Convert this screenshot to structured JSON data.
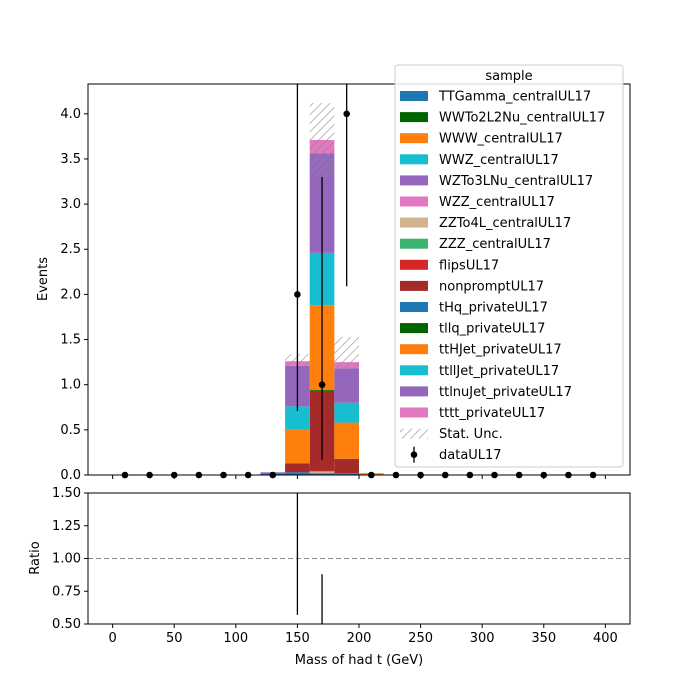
{
  "chart_data": {
    "type": "bar",
    "stacked": true,
    "xlabel": "Mass of had t (GeV)",
    "ylabel_top": "Events",
    "ylabel_bottom": "Ratio",
    "xlim": [
      -20,
      420
    ],
    "ylim_top": [
      0,
      4.33
    ],
    "ylim_bottom": [
      0.5,
      1.5
    ],
    "bin_width": 20,
    "x_ticks": [
      0,
      50,
      100,
      150,
      200,
      250,
      300,
      350,
      400
    ],
    "y_ticks_top": [
      0.0,
      0.5,
      1.0,
      1.5,
      2.0,
      2.5,
      3.0,
      3.5,
      4.0
    ],
    "y_ticks_bottom": [
      0.5,
      0.75,
      1.0,
      1.25,
      1.5
    ],
    "legend": {
      "title": "sample",
      "placement": "top-right"
    },
    "bin_starts": [
      120,
      140,
      160,
      180,
      200
    ],
    "series": [
      {
        "name": "TTGamma_centralUL17",
        "color": "#1f77b4",
        "values": [
          0.02,
          0.03,
          0.02,
          0.02,
          0.0
        ]
      },
      {
        "name": "WWTo2L2Nu_centralUL17",
        "color": "#006400",
        "values": [
          0,
          0,
          0,
          0,
          0
        ]
      },
      {
        "name": "WWW_centralUL17",
        "color": "#ff7f0e",
        "values": [
          0,
          0,
          0,
          0,
          0.02
        ]
      },
      {
        "name": "WWZ_centralUL17",
        "color": "#17becf",
        "values": [
          0,
          0,
          0,
          0,
          0
        ]
      },
      {
        "name": "WZTo3LNu_centralUL17",
        "color": "#9467bd",
        "values": [
          0.01,
          0,
          0,
          0,
          0
        ]
      },
      {
        "name": "WZZ_centralUL17",
        "color": "#e377c2",
        "values": [
          0,
          0,
          0,
          0,
          0
        ]
      },
      {
        "name": "ZZTo4L_centralUL17",
        "color": "#d2b48c",
        "values": [
          0,
          0,
          0.02,
          0,
          0
        ]
      },
      {
        "name": "ZZZ_centralUL17",
        "color": "#3cb371",
        "values": [
          0,
          0,
          0,
          0,
          0
        ]
      },
      {
        "name": "flipsUL17",
        "color": "#d62728",
        "values": [
          0,
          0,
          0.01,
          0,
          0
        ]
      },
      {
        "name": "nonpromptUL17",
        "color": "#a52a2a",
        "values": [
          0,
          0.1,
          0.88,
          0.15,
          0
        ]
      },
      {
        "name": "tHq_privateUL17",
        "color": "#1f77b4",
        "values": [
          0,
          0,
          0,
          0,
          0
        ]
      },
      {
        "name": "tllq_privateUL17",
        "color": "#006400",
        "values": [
          0,
          0,
          0.01,
          0.01,
          0
        ]
      },
      {
        "name": "ttHJet_privateUL17",
        "color": "#ff7f0e",
        "values": [
          0,
          0.37,
          0.94,
          0.4,
          0
        ]
      },
      {
        "name": "ttllJet_privateUL17",
        "color": "#17becf",
        "values": [
          0,
          0.26,
          0.58,
          0.22,
          0
        ]
      },
      {
        "name": "ttlnuJet_privateUL17",
        "color": "#9467bd",
        "values": [
          0,
          0.45,
          1.1,
          0.38,
          0
        ]
      },
      {
        "name": "tttt_privateUL17",
        "color": "#e377c2",
        "values": [
          0,
          0.05,
          0.15,
          0.07,
          0
        ]
      }
    ],
    "stat_unc": {
      "name": "Stat. Unc.",
      "bin_starts": [
        140,
        160,
        180
      ],
      "low": [
        1.2,
        3.3,
        1.15
      ],
      "high": [
        1.34,
        4.12,
        1.53
      ]
    },
    "data": {
      "name": "dataUL17",
      "x": [
        10,
        30,
        50,
        70,
        90,
        110,
        130,
        150,
        170,
        190,
        210,
        230,
        250,
        270,
        290,
        310,
        330,
        350,
        370,
        390
      ],
      "y": [
        0,
        0,
        0,
        0,
        0,
        0,
        0,
        2,
        1,
        4,
        0,
        0,
        0,
        0,
        0,
        0,
        0,
        0,
        0,
        0
      ],
      "err_low": [
        0,
        0,
        0,
        0,
        0,
        0,
        0,
        1.29,
        0.83,
        1.91,
        0,
        0,
        0,
        0,
        0,
        0,
        0,
        0,
        0,
        0
      ],
      "err_high": [
        0,
        0,
        0,
        0,
        0,
        0,
        0,
        2.64,
        2.3,
        3.16,
        0,
        0,
        0,
        0,
        0,
        0,
        0,
        0,
        0,
        0
      ]
    },
    "ratio": {
      "x": [
        150,
        170
      ],
      "low": [
        0.57,
        0.5
      ],
      "high": [
        1.5,
        0.88
      ]
    },
    "ratio_reference": 1.0
  }
}
